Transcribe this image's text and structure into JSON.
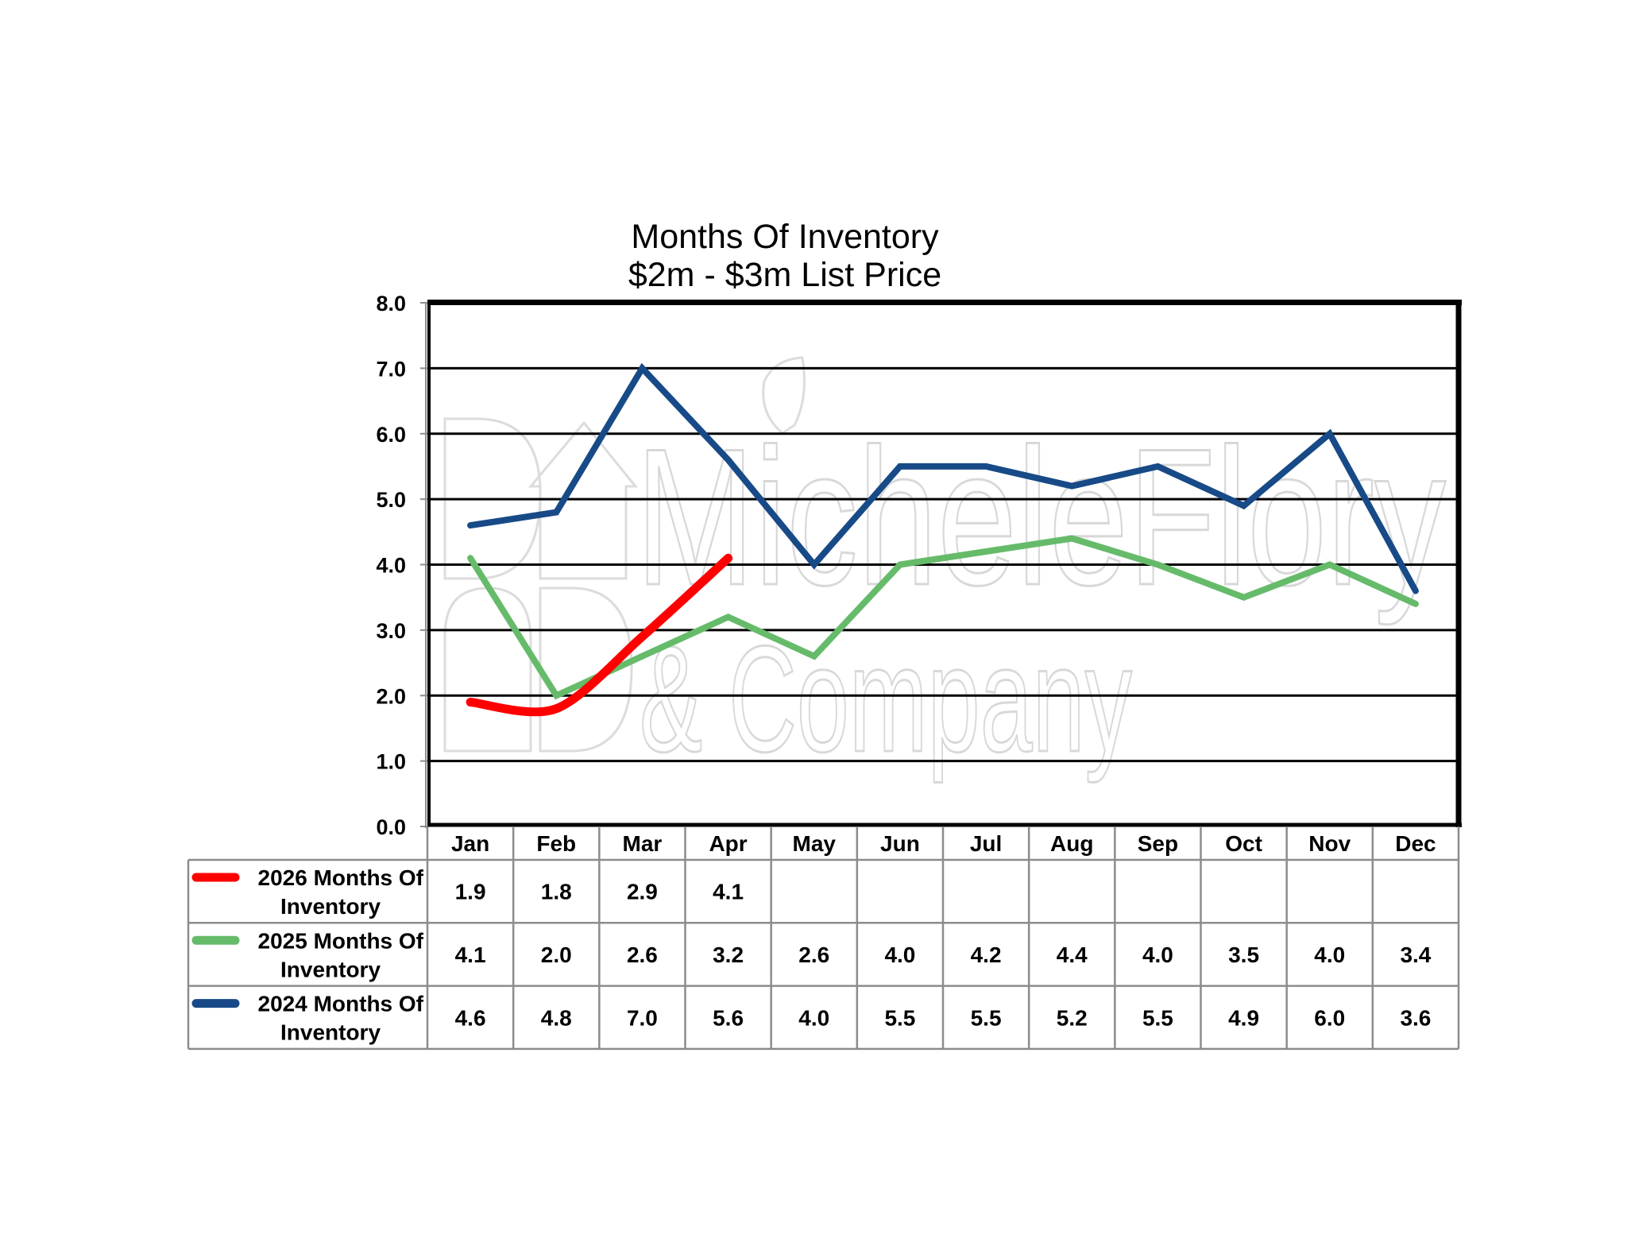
{
  "chart_data": {
    "type": "line",
    "title": "Months Of Inventory",
    "subtitle": "$2m - $3m List Price",
    "xlabel": "",
    "ylabel": "",
    "ylim": [
      0,
      8
    ],
    "yticks": [
      "0.0",
      "1.0",
      "2.0",
      "3.0",
      "4.0",
      "5.0",
      "6.0",
      "7.0",
      "8.0"
    ],
    "grid": true,
    "legend_placement": "bottom-table",
    "categories": [
      "Jan",
      "Feb",
      "Mar",
      "Apr",
      "May",
      "Jun",
      "Jul",
      "Aug",
      "Sep",
      "Oct",
      "Nov",
      "Dec"
    ],
    "series": [
      {
        "name_line1": "2026 Months Of",
        "name_line2": "Inventory",
        "color": "#ff0000",
        "values": [
          1.9,
          1.8,
          2.9,
          4.1,
          null,
          null,
          null,
          null,
          null,
          null,
          null,
          null
        ],
        "labels": [
          "1.9",
          "1.8",
          "2.9",
          "4.1",
          "",
          "",
          "",
          "",
          "",
          "",
          "",
          ""
        ]
      },
      {
        "name_line1": "2025 Months Of",
        "name_line2": "Inventory",
        "color": "#66bb6a",
        "values": [
          4.1,
          2.0,
          2.6,
          3.2,
          2.6,
          4.0,
          4.2,
          4.4,
          4.0,
          3.5,
          4.0,
          3.4
        ],
        "labels": [
          "4.1",
          "2.0",
          "2.6",
          "3.2",
          "2.6",
          "4.0",
          "4.2",
          "4.4",
          "4.0",
          "3.5",
          "4.0",
          "3.4"
        ]
      },
      {
        "name_line1": "2024 Months Of",
        "name_line2": "Inventory",
        "color": "#174a87",
        "values": [
          4.6,
          4.8,
          7.0,
          5.6,
          4.0,
          5.5,
          5.5,
          5.2,
          5.5,
          4.9,
          6.0,
          3.6
        ],
        "labels": [
          "4.6",
          "4.8",
          "7.0",
          "5.6",
          "4.0",
          "5.5",
          "5.5",
          "5.2",
          "5.5",
          "4.9",
          "6.0",
          "3.6"
        ]
      }
    ]
  },
  "watermark": {
    "line1": "MicheleFlory",
    "line2": "& Company"
  }
}
